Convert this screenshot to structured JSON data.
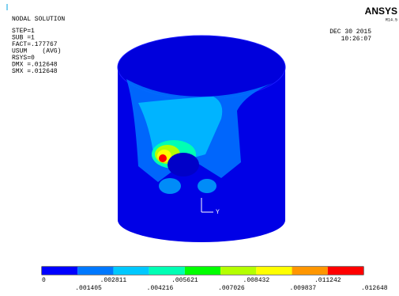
{
  "header": {
    "title": "NODAL SOLUTION",
    "info": [
      "STEP=1",
      "SUB =1",
      "FACT=.177767",
      "USUM    (AVG)",
      "RSYS=0",
      "DMX =.012648",
      "SMX =.012648"
    ],
    "date": "DEC 30 2015",
    "time": "10:26:07",
    "logo": "ANSYS",
    "version": "R14.5"
  },
  "triad": {
    "y": "Y"
  },
  "legend": {
    "colors": [
      "#0000ff",
      "#0078ff",
      "#00c8ff",
      "#00ffb4",
      "#00ff00",
      "#b4ff00",
      "#ffff00",
      "#ff9600",
      "#ff0000"
    ],
    "labels": [
      "0",
      ".001405",
      ".002811",
      ".004216",
      ".005621",
      ".007026",
      ".008432",
      ".009837",
      ".011242",
      ".012648"
    ]
  }
}
